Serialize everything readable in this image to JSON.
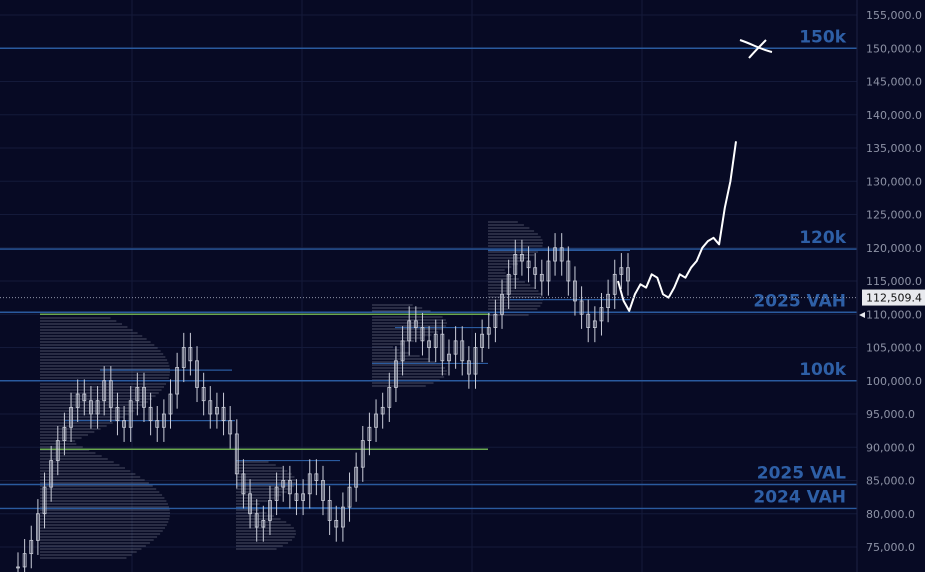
{
  "colors": {
    "background": "#070a24",
    "grid": "#141a3a",
    "level_line": "#2a5a9e",
    "green_line": "#6aa84f",
    "candle": "#c9ccd8",
    "profile": "#9ea3b3",
    "path": "#ffffff",
    "axis_text": "#8e93a6",
    "label_text": "#2e5fa6"
  },
  "chart_data": {
    "type": "line",
    "title": "",
    "xlabel": "",
    "ylabel": "",
    "ylim": [
      72000,
      157000
    ],
    "y_ticks": [
      "75,000.0",
      "80,000.0",
      "85,000.0",
      "90,000.0",
      "95,000.0",
      "100,000.0",
      "105,000.0",
      "110,000.0",
      "115,000.0",
      "120,000.0",
      "125,000.0",
      "130,000.0",
      "135,000.0",
      "140,000.0",
      "145,000.0",
      "150,000.0",
      "155,000.0"
    ],
    "y_tick_values": [
      75000,
      80000,
      85000,
      90000,
      95000,
      100000,
      105000,
      110000,
      115000,
      120000,
      125000,
      130000,
      135000,
      140000,
      145000,
      150000,
      155000
    ],
    "current_price": {
      "value": 112509.4,
      "label": "112,509.4"
    },
    "levels": [
      {
        "name": "150k",
        "value": 150000,
        "style": "blue",
        "label": "150k"
      },
      {
        "name": "120k",
        "value": 119800,
        "style": "blue",
        "label": "120k"
      },
      {
        "name": "2025 VAH",
        "value": 110300,
        "style": "blue",
        "label": "2025 VAH"
      },
      {
        "name": "100k",
        "value": 100000,
        "style": "blue",
        "label": "100k"
      },
      {
        "name": "2025 VAL",
        "value": 84400,
        "style": "blue",
        "label": "2025 VAL"
      },
      {
        "name": "2024 VAH",
        "value": 80800,
        "style": "blue",
        "label": "2024 VAH"
      }
    ],
    "green_levels": [
      110000,
      89700
    ],
    "series": [
      {
        "type": "candles",
        "values": [
          72000,
          74000,
          76000,
          80000,
          84000,
          88000,
          91000,
          93000,
          96000,
          98000,
          97000,
          95000,
          97000,
          100000,
          96000,
          94000,
          93000,
          97000,
          99000,
          96000,
          94000,
          93000,
          95000,
          98000,
          102000,
          105000,
          103000,
          99000,
          97000,
          95000,
          96000,
          94000,
          92000,
          86000,
          83000,
          80000,
          78000,
          79000,
          82000,
          84000,
          85000,
          83000,
          82000,
          83000,
          86000,
          85000,
          82000,
          79000,
          78000,
          81000,
          84000,
          87000,
          91000,
          93000,
          95000,
          96000,
          99000,
          103000,
          106000,
          109000,
          108000,
          106000,
          105000,
          107000,
          103000,
          104000,
          106000,
          103000,
          101000,
          105000,
          107000,
          108000,
          110000,
          113000,
          116000,
          119000,
          118000,
          117000,
          116000,
          115000,
          118000,
          120000,
          118000,
          115000,
          112000,
          110000,
          108000,
          109000,
          111000,
          113000,
          116000,
          117000,
          115000
        ]
      },
      {
        "type": "projection",
        "values": [
          115000,
          112000,
          110500,
          113000,
          114500,
          114000,
          116000,
          115500,
          113000,
          112500,
          114000,
          116000,
          115500,
          117000,
          118000,
          120000,
          121000,
          121500,
          120500,
          126000,
          130000,
          136000
        ]
      }
    ]
  }
}
